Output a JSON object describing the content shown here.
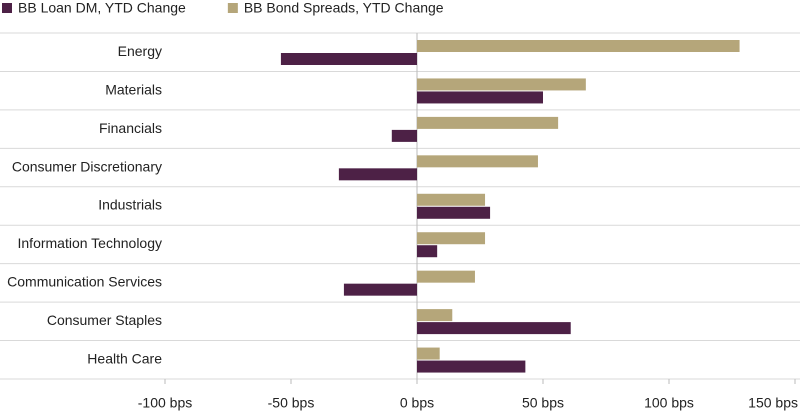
{
  "chart_data": {
    "type": "bar",
    "orientation": "horizontal",
    "categories": [
      "Energy",
      "Materials",
      "Financials",
      "Consumer Discretionary",
      "Industrials",
      "Information Technology",
      "Communication Services",
      "Consumer Staples",
      "Health Care"
    ],
    "series": [
      {
        "name": "BB Loan DM, YTD Change",
        "color": "#4d2146",
        "values": [
          -54,
          50,
          -10,
          -31,
          29,
          8,
          -29,
          61,
          43
        ]
      },
      {
        "name": "BB Bond Spreads, YTD Change",
        "color": "#b5a67a",
        "values": [
          128,
          67,
          56,
          48,
          27,
          27,
          23,
          14,
          9
        ]
      }
    ],
    "xlim": [
      -100,
      150
    ],
    "xticks": [
      {
        "value": -100,
        "label": "-100 bps"
      },
      {
        "value": -50,
        "label": "-50 bps"
      },
      {
        "value": 0,
        "label": "0 bps"
      },
      {
        "value": 50,
        "label": "50 bps"
      },
      {
        "value": 100,
        "label": "100 bps"
      },
      {
        "value": 150,
        "label": "150 bps"
      }
    ],
    "legend": "top-left",
    "grid": false
  }
}
